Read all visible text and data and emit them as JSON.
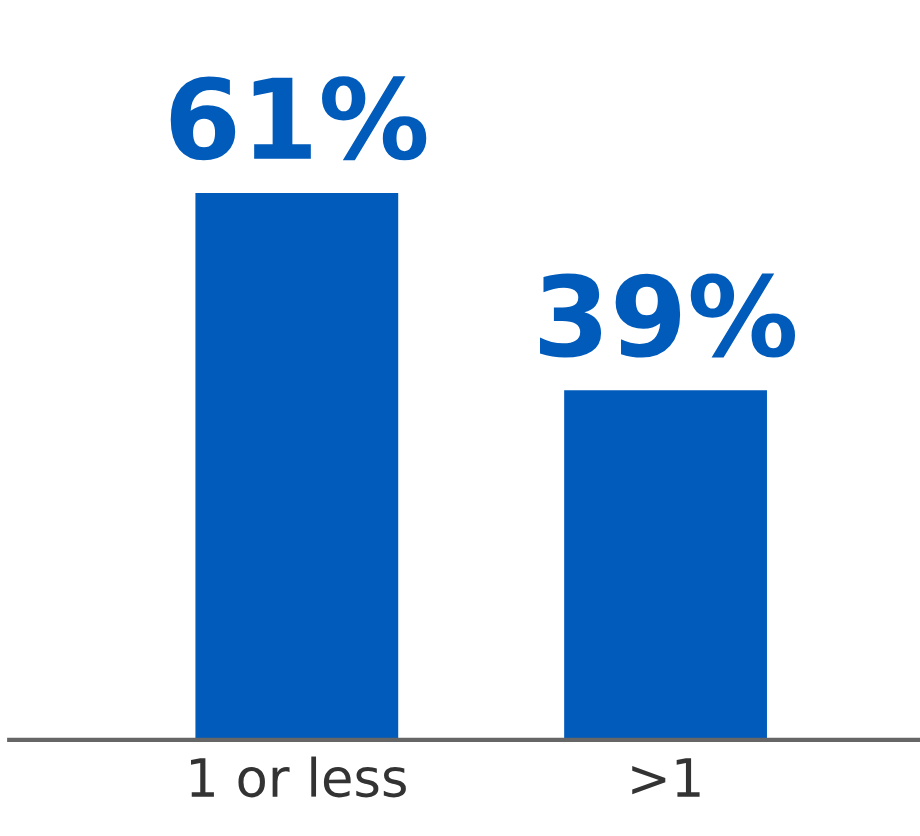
{
  "chart_data": {
    "type": "bar",
    "categories": [
      "1 or less",
      ">1"
    ],
    "values": [
      61,
      39
    ],
    "value_labels": [
      "61%",
      "39%"
    ],
    "color": "#005bbb",
    "grid": false,
    "legend": false
  }
}
